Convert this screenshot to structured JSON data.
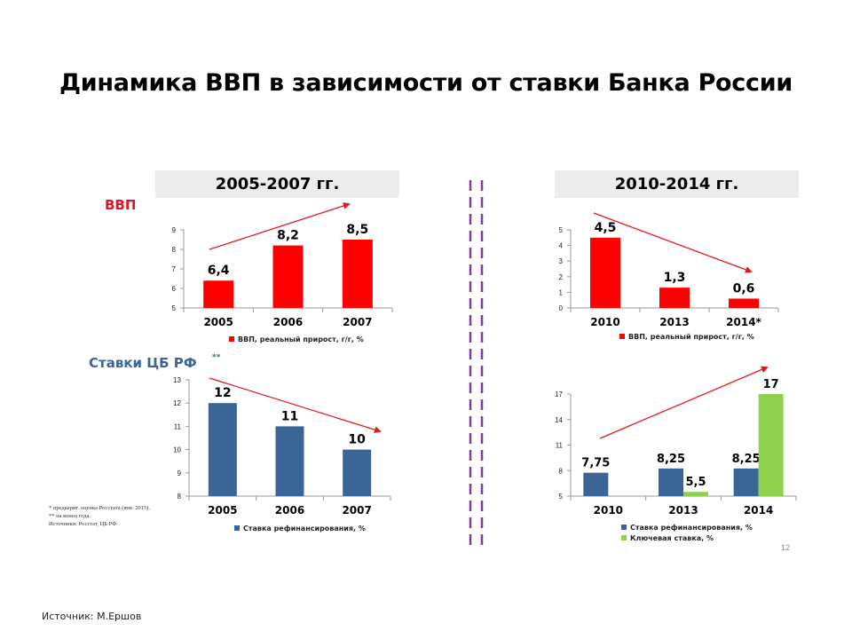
{
  "title": "Динамика ВВП в зависимости от ставки Банка России",
  "left_header": "2005-2007 гг.",
  "right_header": "2010-2014 гг.",
  "gdp_label": "ВВП",
  "rates_label": "Ставки ЦБ РФ",
  "rates_label_note": "**",
  "footnotes": [
    "* предварит. оценка Росстата (янв. 2015).",
    "** на конец года.",
    "Источники: Росстат, ЦБ РФ."
  ],
  "source": "Источник: М.Ершов",
  "page_number": "12",
  "colors": {
    "gdp": "#ff0000",
    "refinancing": "#3a6596",
    "key_rate": "#8fd14f",
    "trend_arrow": "#e31a1c"
  },
  "chart_data": [
    {
      "type": "bar",
      "title": "",
      "xlabel": "",
      "ylabel": "",
      "categories": [
        "2005",
        "2006",
        "2007"
      ],
      "ylim": [
        5,
        9
      ],
      "yticks": [
        "5",
        "6",
        "7",
        "8",
        "9"
      ],
      "series": [
        {
          "name": "ВВП, реальный прирост, г/г, %",
          "values": [
            6.4,
            8.2,
            8.5
          ],
          "labels": [
            "6,4",
            "8,2",
            "8,5"
          ]
        }
      ],
      "legend": "bottom",
      "grid": false,
      "trend": "up"
    },
    {
      "type": "bar",
      "title": "",
      "xlabel": "",
      "ylabel": "",
      "categories": [
        "2010",
        "2013",
        "2014*"
      ],
      "ylim": [
        0,
        5
      ],
      "yticks": [
        "0",
        "1",
        "2",
        "3",
        "4",
        "5"
      ],
      "series": [
        {
          "name": "ВВП, реальный прирост, г/г, %",
          "values": [
            4.5,
            1.3,
            0.6
          ],
          "labels": [
            "4,5",
            "1,3",
            "0,6"
          ]
        }
      ],
      "legend": "bottom",
      "grid": false,
      "trend": "down"
    },
    {
      "type": "bar",
      "title": "",
      "xlabel": "",
      "ylabel": "",
      "categories": [
        "2005",
        "2006",
        "2007"
      ],
      "ylim": [
        8,
        13
      ],
      "yticks": [
        "8",
        "9",
        "10",
        "11",
        "12",
        "13"
      ],
      "series": [
        {
          "name": "Ставка рефинансирования, %",
          "values": [
            12,
            11,
            10
          ],
          "labels": [
            "12",
            "11",
            "10"
          ]
        }
      ],
      "legend": "bottom",
      "grid": false,
      "trend": "down"
    },
    {
      "type": "bar",
      "title": "",
      "xlabel": "",
      "ylabel": "",
      "categories": [
        "2010",
        "2013",
        "2014"
      ],
      "ylim": [
        5,
        17
      ],
      "yticks": [
        "5",
        "8",
        "11",
        "14",
        "17"
      ],
      "series": [
        {
          "name": "Ставка рефинансирования, %",
          "values": [
            7.75,
            8.25,
            8.25
          ],
          "labels": [
            "7,75",
            "8,25",
            "8,25"
          ]
        },
        {
          "name": "Ключевая ставка, %",
          "values": [
            null,
            5.5,
            17
          ],
          "labels": [
            "",
            "5,5",
            "17"
          ]
        }
      ],
      "legend": "bottom",
      "grid": false,
      "trend": "up"
    }
  ]
}
